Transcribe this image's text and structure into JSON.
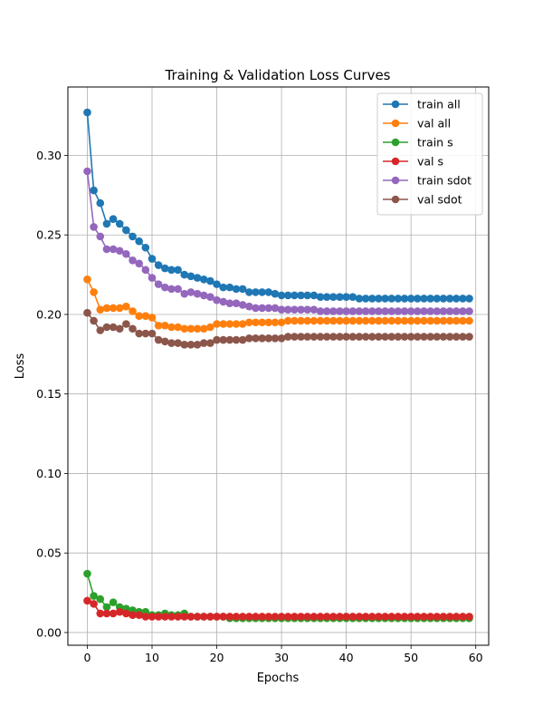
{
  "chart_data": {
    "type": "line",
    "title": "Training & Validation Loss Curves",
    "xlabel": "Epochs",
    "ylabel": "Loss",
    "xlim": [
      -3,
      62
    ],
    "ylim": [
      -0.008,
      0.343
    ],
    "xticks": [
      0,
      10,
      20,
      30,
      40,
      50,
      60
    ],
    "yticks": [
      0.0,
      0.05,
      0.1,
      0.15,
      0.2,
      0.25,
      0.3
    ],
    "ytick_labels": [
      "0.00",
      "0.05",
      "0.10",
      "0.15",
      "0.20",
      "0.25",
      "0.30"
    ],
    "grid": true,
    "legend_position": "top-right",
    "markers": "circle",
    "x": [
      0,
      1,
      2,
      3,
      4,
      5,
      6,
      7,
      8,
      9,
      10,
      11,
      12,
      13,
      14,
      15,
      16,
      17,
      18,
      19,
      20,
      21,
      22,
      23,
      24,
      25,
      26,
      27,
      28,
      29,
      30,
      31,
      32,
      33,
      34,
      35,
      36,
      37,
      38,
      39,
      40,
      41,
      42,
      43,
      44,
      45,
      46,
      47,
      48,
      49,
      50,
      51,
      52,
      53,
      54,
      55,
      56,
      57,
      58,
      59
    ],
    "series": [
      {
        "name": "train all",
        "color": "#1f77b4",
        "values": [
          0.327,
          0.278,
          0.27,
          0.257,
          0.26,
          0.257,
          0.253,
          0.249,
          0.246,
          0.242,
          0.235,
          0.231,
          0.229,
          0.228,
          0.228,
          0.225,
          0.224,
          0.223,
          0.222,
          0.221,
          0.219,
          0.217,
          0.217,
          0.216,
          0.216,
          0.214,
          0.214,
          0.214,
          0.214,
          0.213,
          0.212,
          0.212,
          0.212,
          0.212,
          0.212,
          0.212,
          0.211,
          0.211,
          0.211,
          0.211,
          0.211,
          0.211,
          0.21,
          0.21,
          0.21,
          0.21,
          0.21,
          0.21,
          0.21,
          0.21,
          0.21,
          0.21,
          0.21,
          0.21,
          0.21,
          0.21,
          0.21,
          0.21,
          0.21,
          0.21
        ]
      },
      {
        "name": "val all",
        "color": "#ff7f0e",
        "values": [
          0.222,
          0.214,
          0.203,
          0.204,
          0.204,
          0.204,
          0.205,
          0.202,
          0.199,
          0.199,
          0.198,
          0.193,
          0.193,
          0.192,
          0.192,
          0.191,
          0.191,
          0.191,
          0.191,
          0.192,
          0.194,
          0.194,
          0.194,
          0.194,
          0.194,
          0.195,
          0.195,
          0.195,
          0.195,
          0.195,
          0.195,
          0.196,
          0.196,
          0.196,
          0.196,
          0.196,
          0.196,
          0.196,
          0.196,
          0.196,
          0.196,
          0.196,
          0.196,
          0.196,
          0.196,
          0.196,
          0.196,
          0.196,
          0.196,
          0.196,
          0.196,
          0.196,
          0.196,
          0.196,
          0.196,
          0.196,
          0.196,
          0.196,
          0.196,
          0.196
        ]
      },
      {
        "name": "train s",
        "color": "#2ca02c",
        "values": [
          0.037,
          0.023,
          0.021,
          0.016,
          0.019,
          0.016,
          0.015,
          0.014,
          0.013,
          0.013,
          0.011,
          0.011,
          0.012,
          0.011,
          0.011,
          0.012,
          0.01,
          0.01,
          0.01,
          0.01,
          0.01,
          0.01,
          0.009,
          0.009,
          0.009,
          0.009,
          0.009,
          0.009,
          0.009,
          0.009,
          0.009,
          0.009,
          0.009,
          0.009,
          0.009,
          0.009,
          0.009,
          0.009,
          0.009,
          0.009,
          0.009,
          0.009,
          0.009,
          0.009,
          0.009,
          0.009,
          0.009,
          0.009,
          0.009,
          0.009,
          0.009,
          0.009,
          0.009,
          0.009,
          0.009,
          0.009,
          0.009,
          0.009,
          0.009,
          0.009
        ]
      },
      {
        "name": "val s",
        "color": "#d62728",
        "values": [
          0.02,
          0.018,
          0.012,
          0.012,
          0.012,
          0.013,
          0.012,
          0.011,
          0.011,
          0.01,
          0.01,
          0.01,
          0.01,
          0.01,
          0.01,
          0.01,
          0.01,
          0.01,
          0.01,
          0.01,
          0.01,
          0.01,
          0.01,
          0.01,
          0.01,
          0.01,
          0.01,
          0.01,
          0.01,
          0.01,
          0.01,
          0.01,
          0.01,
          0.01,
          0.01,
          0.01,
          0.01,
          0.01,
          0.01,
          0.01,
          0.01,
          0.01,
          0.01,
          0.01,
          0.01,
          0.01,
          0.01,
          0.01,
          0.01,
          0.01,
          0.01,
          0.01,
          0.01,
          0.01,
          0.01,
          0.01,
          0.01,
          0.01,
          0.01,
          0.01
        ]
      },
      {
        "name": "train sdot",
        "color": "#9467bd",
        "values": [
          0.29,
          0.255,
          0.249,
          0.241,
          0.241,
          0.24,
          0.238,
          0.234,
          0.232,
          0.228,
          0.223,
          0.219,
          0.217,
          0.216,
          0.216,
          0.213,
          0.214,
          0.213,
          0.212,
          0.211,
          0.209,
          0.208,
          0.207,
          0.207,
          0.206,
          0.205,
          0.204,
          0.204,
          0.204,
          0.204,
          0.203,
          0.203,
          0.203,
          0.203,
          0.203,
          0.203,
          0.202,
          0.202,
          0.202,
          0.202,
          0.202,
          0.202,
          0.202,
          0.202,
          0.202,
          0.202,
          0.202,
          0.202,
          0.202,
          0.202,
          0.202,
          0.202,
          0.202,
          0.202,
          0.202,
          0.202,
          0.202,
          0.202,
          0.202,
          0.202
        ]
      },
      {
        "name": "val sdot",
        "color": "#8c564b",
        "values": [
          0.201,
          0.196,
          0.19,
          0.192,
          0.192,
          0.191,
          0.194,
          0.191,
          0.188,
          0.188,
          0.188,
          0.184,
          0.183,
          0.182,
          0.182,
          0.181,
          0.181,
          0.181,
          0.182,
          0.182,
          0.184,
          0.184,
          0.184,
          0.184,
          0.184,
          0.185,
          0.185,
          0.185,
          0.185,
          0.185,
          0.185,
          0.186,
          0.186,
          0.186,
          0.186,
          0.186,
          0.186,
          0.186,
          0.186,
          0.186,
          0.186,
          0.186,
          0.186,
          0.186,
          0.186,
          0.186,
          0.186,
          0.186,
          0.186,
          0.186,
          0.186,
          0.186,
          0.186,
          0.186,
          0.186,
          0.186,
          0.186,
          0.186,
          0.186,
          0.186
        ]
      }
    ]
  }
}
